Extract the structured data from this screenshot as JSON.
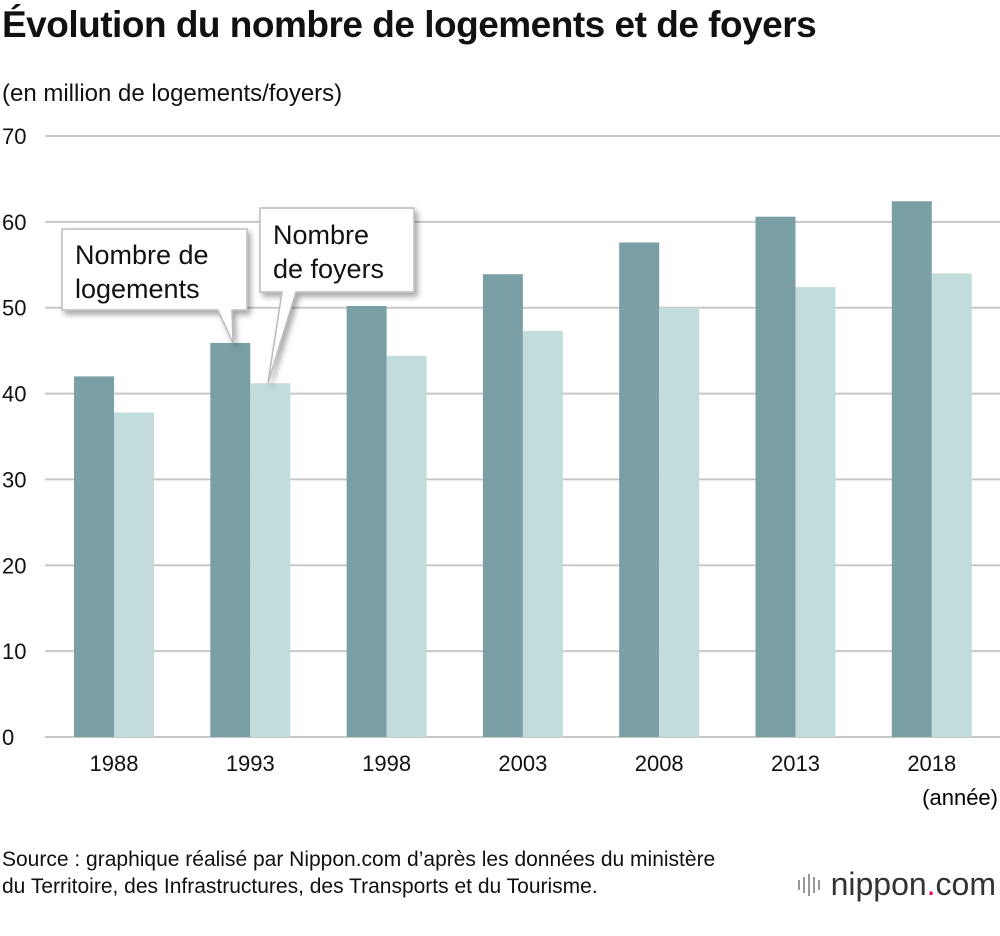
{
  "title": "Évolution du nombre de logements et de foyers",
  "unit_label": "(en million de logements/foyers)",
  "source": "Source : graphique réalisé par Nippon.com d’après les données du ministère du Territoire, des Infrastructures, des Transports et du Tourisme.",
  "logo": {
    "name": "nippon",
    "dot": ".",
    "suffix": "com"
  },
  "colors": {
    "logements": "#7a9fa5",
    "foyers": "#c2dcdc",
    "grid": "#c8c8c8"
  },
  "chart_data": {
    "type": "bar",
    "title": "Évolution du nombre de logements et de foyers",
    "xlabel": "(année)",
    "ylabel": "(en million de logements/foyers)",
    "ylim": [
      0,
      70
    ],
    "yticks": [
      0,
      10,
      20,
      30,
      40,
      50,
      60,
      70
    ],
    "grid": true,
    "categories": [
      "1988",
      "1993",
      "1998",
      "2003",
      "2008",
      "2013",
      "2018"
    ],
    "series": [
      {
        "name": "Nombre de logements",
        "label_lines": [
          "Nombre de",
          "logements"
        ],
        "values": [
          42.0,
          45.9,
          50.2,
          53.9,
          57.6,
          60.6,
          62.4
        ]
      },
      {
        "name": "Nombre de foyers",
        "label_lines": [
          "Nombre",
          "de foyers"
        ],
        "values": [
          37.8,
          41.2,
          44.4,
          47.3,
          50.0,
          52.4,
          54.0
        ]
      }
    ]
  }
}
